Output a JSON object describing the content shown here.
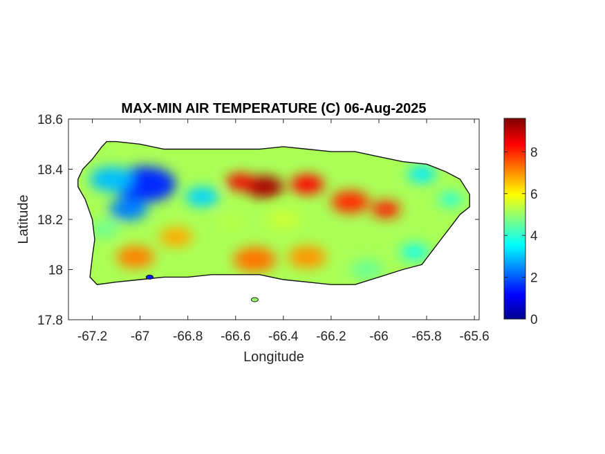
{
  "chart_data": {
    "type": "heatmap",
    "title": "MAX-MIN AIR TEMPERATURE (C) 06-Aug-2025",
    "xlabel": "Longitude",
    "ylabel": "Latitude",
    "xlim": [
      -67.3,
      -65.58
    ],
    "ylim": [
      17.8,
      18.6
    ],
    "x_ticks": [
      {
        "value": -67.2,
        "label": "-67.2"
      },
      {
        "value": -67.0,
        "label": "-67"
      },
      {
        "value": -66.8,
        "label": "-66.8"
      },
      {
        "value": -66.6,
        "label": "-66.6"
      },
      {
        "value": -66.4,
        "label": "-66.4"
      },
      {
        "value": -66.2,
        "label": "-66.2"
      },
      {
        "value": -66.0,
        "label": "-66"
      },
      {
        "value": -65.8,
        "label": "-65.8"
      },
      {
        "value": -65.6,
        "label": "-65.6"
      }
    ],
    "y_ticks": [
      {
        "value": 18.6,
        "label": "18.6"
      },
      {
        "value": 18.4,
        "label": "18.4"
      },
      {
        "value": 18.2,
        "label": "18.2"
      },
      {
        "value": 18.0,
        "label": "18"
      },
      {
        "value": 17.8,
        "label": "17.8"
      }
    ],
    "colorbar": {
      "colormap": "jet",
      "range": [
        0,
        9.6
      ],
      "ticks": [
        {
          "value": 0,
          "label": "0"
        },
        {
          "value": 2,
          "label": "2"
        },
        {
          "value": 4,
          "label": "4"
        },
        {
          "value": 6,
          "label": "6"
        },
        {
          "value": 8,
          "label": "8"
        }
      ]
    },
    "outline": [
      [
        -67.26,
        18.36
      ],
      [
        -67.24,
        18.4
      ],
      [
        -67.2,
        18.44
      ],
      [
        -67.16,
        18.49
      ],
      [
        -67.14,
        18.51
      ],
      [
        -67.1,
        18.51
      ],
      [
        -67.0,
        18.5
      ],
      [
        -66.9,
        18.48
      ],
      [
        -66.8,
        18.48
      ],
      [
        -66.7,
        18.48
      ],
      [
        -66.6,
        18.48
      ],
      [
        -66.5,
        18.48
      ],
      [
        -66.4,
        18.49
      ],
      [
        -66.3,
        18.48
      ],
      [
        -66.2,
        18.47
      ],
      [
        -66.1,
        18.47
      ],
      [
        -66.0,
        18.45
      ],
      [
        -65.9,
        18.43
      ],
      [
        -65.8,
        18.42
      ],
      [
        -65.72,
        18.39
      ],
      [
        -65.66,
        18.36
      ],
      [
        -65.62,
        18.3
      ],
      [
        -65.62,
        18.25
      ],
      [
        -65.66,
        18.22
      ],
      [
        -65.7,
        18.17
      ],
      [
        -65.74,
        18.12
      ],
      [
        -65.78,
        18.07
      ],
      [
        -65.82,
        18.02
      ],
      [
        -65.9,
        18.0
      ],
      [
        -66.0,
        17.97
      ],
      [
        -66.1,
        17.94
      ],
      [
        -66.2,
        17.94
      ],
      [
        -66.3,
        17.95
      ],
      [
        -66.4,
        17.96
      ],
      [
        -66.5,
        17.98
      ],
      [
        -66.6,
        17.98
      ],
      [
        -66.7,
        17.98
      ],
      [
        -66.8,
        17.97
      ],
      [
        -66.9,
        17.97
      ],
      [
        -67.0,
        17.96
      ],
      [
        -67.1,
        17.95
      ],
      [
        -67.18,
        17.94
      ],
      [
        -67.21,
        17.97
      ],
      [
        -67.2,
        18.05
      ],
      [
        -67.19,
        18.12
      ],
      [
        -67.2,
        18.2
      ],
      [
        -67.23,
        18.28
      ],
      [
        -67.26,
        18.33
      ]
    ],
    "hotspots": [
      {
        "lon": -66.98,
        "lat": 18.34,
        "value": 1.6,
        "r": 0.13
      },
      {
        "lon": -67.12,
        "lat": 18.36,
        "value": 3.0,
        "r": 0.09
      },
      {
        "lon": -67.05,
        "lat": 18.24,
        "value": 2.4,
        "r": 0.08
      },
      {
        "lon": -66.74,
        "lat": 18.29,
        "value": 3.2,
        "r": 0.07
      },
      {
        "lon": -66.48,
        "lat": 18.33,
        "value": 9.2,
        "r": 0.08
      },
      {
        "lon": -66.58,
        "lat": 18.35,
        "value": 8.5,
        "r": 0.06
      },
      {
        "lon": -66.3,
        "lat": 18.34,
        "value": 8.4,
        "r": 0.07
      },
      {
        "lon": -66.12,
        "lat": 18.27,
        "value": 8.0,
        "r": 0.08
      },
      {
        "lon": -65.97,
        "lat": 18.24,
        "value": 8.2,
        "r": 0.06
      },
      {
        "lon": -66.52,
        "lat": 18.04,
        "value": 7.3,
        "r": 0.09
      },
      {
        "lon": -66.3,
        "lat": 18.05,
        "value": 7.0,
        "r": 0.08
      },
      {
        "lon": -67.02,
        "lat": 18.05,
        "value": 7.2,
        "r": 0.08
      },
      {
        "lon": -66.85,
        "lat": 18.13,
        "value": 6.8,
        "r": 0.07
      },
      {
        "lon": -65.82,
        "lat": 18.38,
        "value": 3.4,
        "r": 0.06
      },
      {
        "lon": -65.7,
        "lat": 18.28,
        "value": 3.9,
        "r": 0.05
      },
      {
        "lon": -65.85,
        "lat": 18.07,
        "value": 3.8,
        "r": 0.06
      },
      {
        "lon": -66.05,
        "lat": 18.0,
        "value": 4.6,
        "r": 0.07
      },
      {
        "lon": -67.15,
        "lat": 18.16,
        "value": 4.6,
        "r": 0.06
      },
      {
        "lon": -66.62,
        "lat": 18.19,
        "value": 5.3,
        "r": 0.06
      },
      {
        "lon": -66.4,
        "lat": 18.2,
        "value": 5.5,
        "r": 0.07
      }
    ],
    "background_value": 5.2,
    "islands": [
      {
        "lon": -66.52,
        "lat": 17.88,
        "value": 5.0
      },
      {
        "lon": -66.96,
        "lat": 17.97,
        "value": 1.5
      }
    ]
  }
}
